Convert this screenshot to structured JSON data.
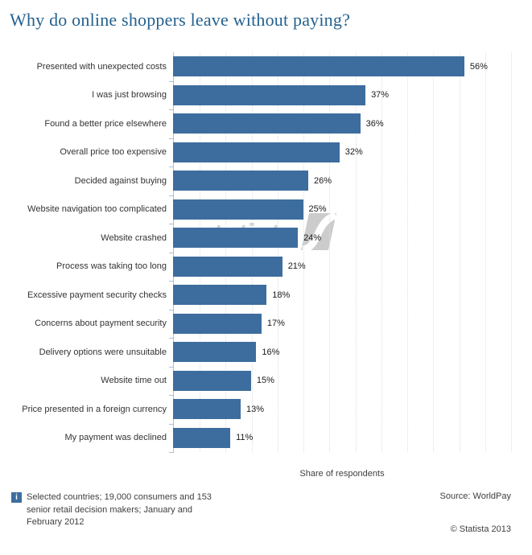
{
  "title": "Why do online shoppers leave without paying?",
  "chart_data": {
    "type": "bar",
    "orientation": "horizontal",
    "title": "Why do online shoppers leave without paying?",
    "categories": [
      "Presented with unexpected costs",
      "I was just browsing",
      "Found a better price elsewhere",
      "Overall price too expensive",
      "Decided against buying",
      "Website navigation too complicated",
      "Website crashed",
      "Process was taking too long",
      "Excessive payment security checks",
      "Concerns about payment security",
      "Delivery options were unsuitable",
      "Website time out",
      "Price presented in a foreign currency",
      "My payment was declined"
    ],
    "values": [
      56,
      37,
      36,
      32,
      26,
      25,
      24,
      21,
      18,
      17,
      16,
      15,
      13,
      11
    ],
    "unit": "%",
    "xlabel": "Share of respondents",
    "ylabel": "",
    "xlim": [
      0,
      65
    ],
    "gridline_step": 5,
    "grid": "vertical-dotted",
    "legend": "none",
    "bar_color": "#3d6d9e"
  },
  "watermark": {
    "text": "statista"
  },
  "footer": {
    "info_icon": "i",
    "note": "Selected countries; 19,000 consumers and 153 senior retail decision makers; January and February 2012",
    "source": "Source: WorldPay",
    "copyright": "© Statista 2013"
  },
  "colors": {
    "title": "#24618f",
    "bar": "#3d6d9e",
    "axis": "#a9c1d5",
    "gridline": "#dcdfe2",
    "label_text": "#333333",
    "value_text": "#1a1a1a",
    "footer_text": "#404040",
    "watermark": "#d2d2d2",
    "info_icon_bg": "#3c6e9e"
  }
}
